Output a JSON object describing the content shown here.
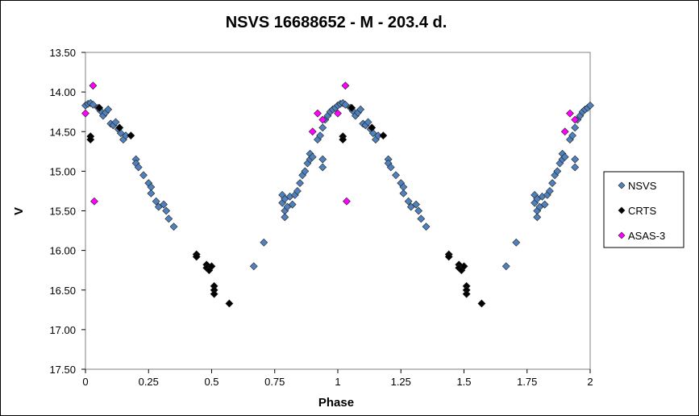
{
  "chart_data": {
    "type": "scatter",
    "title": "NSVS 16688652 - M - 203.4 d.",
    "xlabel": "Phase",
    "ylabel": "V",
    "xlim": [
      0,
      2
    ],
    "ylim": [
      13.5,
      17.5
    ],
    "y_inverted": true,
    "x_ticks": [
      "0",
      "0.25",
      "0.5",
      "0.75",
      "1",
      "1.25",
      "1.5",
      "1.75",
      "2"
    ],
    "y_ticks": [
      "13.50",
      "14.00",
      "14.50",
      "15.00",
      "15.50",
      "16.00",
      "16.50",
      "17.00",
      "17.50"
    ],
    "grid": false,
    "legend_position": "right",
    "series": [
      {
        "name": "NSVS",
        "color": "#4f81bd",
        "points": [
          [
            0.0,
            14.17
          ],
          [
            0.01,
            14.15
          ],
          [
            0.02,
            14.14
          ],
          [
            0.03,
            14.16
          ],
          [
            0.05,
            14.2
          ],
          [
            0.06,
            14.24
          ],
          [
            0.07,
            14.3
          ],
          [
            0.08,
            14.26
          ],
          [
            0.09,
            14.22
          ],
          [
            0.1,
            14.4
          ],
          [
            0.11,
            14.42
          ],
          [
            0.12,
            14.38
          ],
          [
            0.13,
            14.47
          ],
          [
            0.14,
            14.52
          ],
          [
            0.15,
            14.6
          ],
          [
            0.16,
            14.55
          ],
          [
            0.2,
            14.85
          ],
          [
            0.2,
            14.9
          ],
          [
            0.21,
            14.95
          ],
          [
            0.23,
            15.05
          ],
          [
            0.25,
            15.15
          ],
          [
            0.26,
            15.2
          ],
          [
            0.26,
            15.28
          ],
          [
            0.28,
            15.38
          ],
          [
            0.29,
            15.45
          ],
          [
            0.31,
            15.42
          ],
          [
            0.32,
            15.5
          ],
          [
            0.33,
            15.6
          ],
          [
            0.35,
            15.7
          ],
          [
            0.667,
            16.2
          ],
          [
            0.707,
            15.9
          ],
          [
            0.78,
            15.3
          ],
          [
            0.78,
            15.4
          ],
          [
            0.79,
            15.35
          ],
          [
            0.79,
            15.5
          ],
          [
            0.79,
            15.58
          ],
          [
            0.8,
            15.45
          ],
          [
            0.81,
            15.32
          ],
          [
            0.82,
            15.42
          ],
          [
            0.83,
            15.3
          ],
          [
            0.84,
            15.25
          ],
          [
            0.85,
            15.15
          ],
          [
            0.86,
            15.05
          ],
          [
            0.87,
            15.0
          ],
          [
            0.88,
            14.9
          ],
          [
            0.89,
            14.78
          ],
          [
            0.89,
            14.85
          ],
          [
            0.9,
            14.82
          ],
          [
            0.92,
            14.6
          ],
          [
            0.93,
            14.55
          ],
          [
            0.94,
            14.45
          ],
          [
            0.94,
            14.95
          ],
          [
            0.94,
            14.85
          ],
          [
            0.95,
            14.35
          ],
          [
            0.96,
            14.3
          ],
          [
            0.97,
            14.25
          ],
          [
            0.98,
            14.22
          ],
          [
            0.99,
            14.2
          ],
          [
            1.0,
            14.17
          ],
          [
            1.01,
            14.15
          ],
          [
            1.02,
            14.14
          ],
          [
            1.03,
            14.16
          ],
          [
            1.05,
            14.2
          ],
          [
            1.06,
            14.24
          ],
          [
            1.07,
            14.3
          ],
          [
            1.08,
            14.26
          ],
          [
            1.09,
            14.22
          ],
          [
            1.1,
            14.4
          ],
          [
            1.11,
            14.42
          ],
          [
            1.12,
            14.38
          ],
          [
            1.13,
            14.47
          ],
          [
            1.14,
            14.52
          ],
          [
            1.15,
            14.6
          ],
          [
            1.16,
            14.55
          ],
          [
            1.2,
            14.85
          ],
          [
            1.2,
            14.9
          ],
          [
            1.21,
            14.95
          ],
          [
            1.23,
            15.05
          ],
          [
            1.25,
            15.15
          ],
          [
            1.26,
            15.2
          ],
          [
            1.26,
            15.28
          ],
          [
            1.28,
            15.38
          ],
          [
            1.29,
            15.45
          ],
          [
            1.31,
            15.42
          ],
          [
            1.32,
            15.5
          ],
          [
            1.33,
            15.6
          ],
          [
            1.35,
            15.7
          ],
          [
            1.667,
            16.2
          ],
          [
            1.707,
            15.9
          ],
          [
            1.78,
            15.3
          ],
          [
            1.78,
            15.4
          ],
          [
            1.79,
            15.35
          ],
          [
            1.79,
            15.5
          ],
          [
            1.79,
            15.58
          ],
          [
            1.8,
            15.45
          ],
          [
            1.81,
            15.32
          ],
          [
            1.82,
            15.42
          ],
          [
            1.83,
            15.3
          ],
          [
            1.84,
            15.25
          ],
          [
            1.85,
            15.15
          ],
          [
            1.86,
            15.05
          ],
          [
            1.87,
            15.0
          ],
          [
            1.88,
            14.9
          ],
          [
            1.89,
            14.78
          ],
          [
            1.89,
            14.85
          ],
          [
            1.9,
            14.82
          ],
          [
            1.92,
            14.6
          ],
          [
            1.93,
            14.55
          ],
          [
            1.94,
            14.45
          ],
          [
            1.94,
            14.95
          ],
          [
            1.94,
            14.85
          ],
          [
            1.95,
            14.35
          ],
          [
            1.96,
            14.3
          ],
          [
            1.97,
            14.25
          ],
          [
            1.98,
            14.22
          ],
          [
            1.99,
            14.2
          ],
          [
            2.0,
            14.17
          ]
        ]
      },
      {
        "name": "CRTS",
        "color": "#000000",
        "points": [
          [
            0.02,
            14.56
          ],
          [
            0.02,
            14.6
          ],
          [
            0.055,
            14.2
          ],
          [
            0.135,
            14.45
          ],
          [
            0.18,
            14.55
          ],
          [
            0.44,
            16.05
          ],
          [
            0.44,
            16.08
          ],
          [
            0.48,
            16.18
          ],
          [
            0.48,
            16.22
          ],
          [
            0.49,
            16.25
          ],
          [
            0.5,
            16.2
          ],
          [
            0.51,
            16.45
          ],
          [
            0.51,
            16.5
          ],
          [
            0.51,
            16.55
          ],
          [
            0.57,
            16.67
          ],
          [
            1.02,
            14.56
          ],
          [
            1.02,
            14.6
          ],
          [
            1.055,
            14.2
          ],
          [
            1.135,
            14.45
          ],
          [
            1.18,
            14.55
          ],
          [
            1.44,
            16.05
          ],
          [
            1.44,
            16.08
          ],
          [
            1.48,
            16.18
          ],
          [
            1.48,
            16.22
          ],
          [
            1.49,
            16.25
          ],
          [
            1.5,
            16.2
          ],
          [
            1.51,
            16.45
          ],
          [
            1.51,
            16.5
          ],
          [
            1.51,
            16.55
          ],
          [
            1.57,
            16.67
          ]
        ]
      },
      {
        "name": "ASAS-3",
        "color": "#ff00ff",
        "points": [
          [
            0.0,
            14.27
          ],
          [
            0.03,
            13.92
          ],
          [
            0.035,
            15.38
          ],
          [
            0.9,
            14.5
          ],
          [
            0.92,
            14.27
          ],
          [
            0.94,
            14.35
          ],
          [
            1.0,
            14.27
          ],
          [
            1.03,
            13.92
          ],
          [
            1.035,
            15.38
          ],
          [
            1.9,
            14.5
          ],
          [
            1.92,
            14.27
          ],
          [
            1.94,
            14.35
          ]
        ]
      }
    ]
  }
}
